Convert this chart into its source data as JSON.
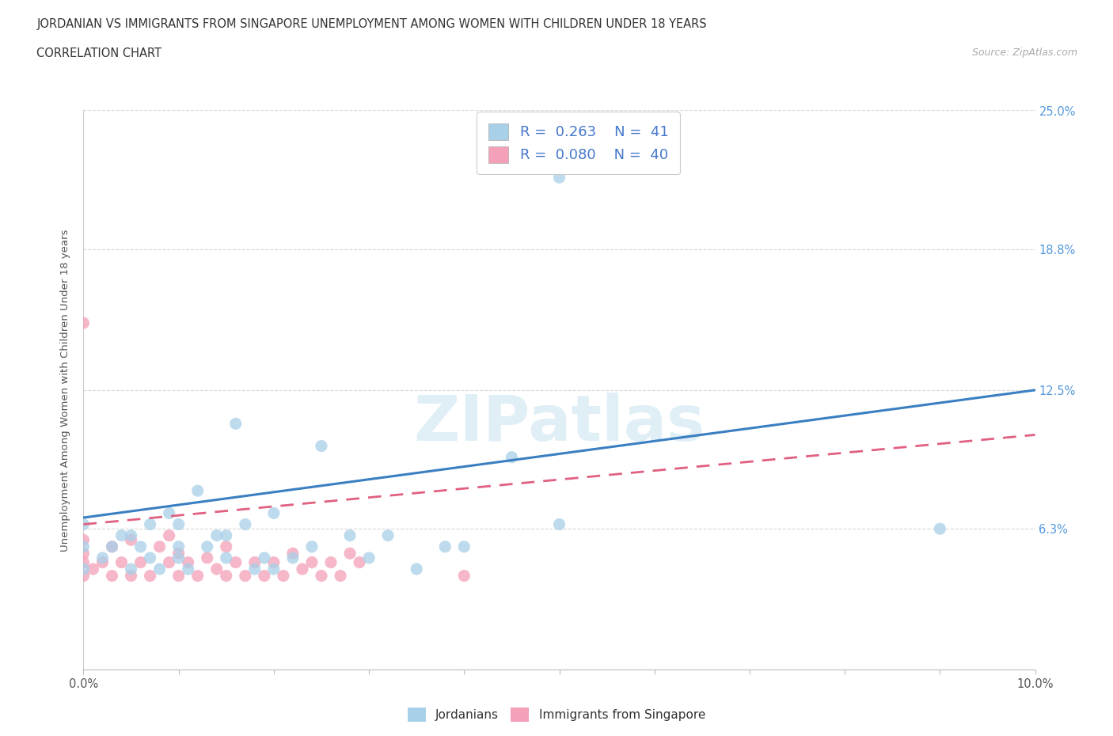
{
  "title_line1": "JORDANIAN VS IMMIGRANTS FROM SINGAPORE UNEMPLOYMENT AMONG WOMEN WITH CHILDREN UNDER 18 YEARS",
  "title_line2": "CORRELATION CHART",
  "source_text": "Source: ZipAtlas.com",
  "ylabel": "Unemployment Among Women with Children Under 18 years",
  "xlim": [
    0.0,
    0.1
  ],
  "ylim": [
    0.0,
    0.25
  ],
  "ytick_vals": [
    0.063,
    0.125,
    0.188,
    0.25
  ],
  "ytick_labels": [
    "6.3%",
    "12.5%",
    "18.8%",
    "25.0%"
  ],
  "jordanian_color": "#a8d0e8",
  "singapore_color": "#f4a0b8",
  "trend_jordanian_color": "#3a7fc1",
  "trend_singapore_color": "#e06080",
  "background_color": "#ffffff",
  "watermark_text": "ZIPatlas",
  "legend_R_jordanian": "0.263",
  "legend_N_jordanian": "41",
  "legend_R_singapore": "0.080",
  "legend_N_singapore": "40",
  "jordanian_x": [
    0.0,
    0.0,
    0.0,
    0.002,
    0.003,
    0.004,
    0.005,
    0.005,
    0.006,
    0.007,
    0.007,
    0.008,
    0.009,
    0.01,
    0.01,
    0.01,
    0.011,
    0.012,
    0.013,
    0.014,
    0.015,
    0.015,
    0.016,
    0.017,
    0.018,
    0.019,
    0.02,
    0.02,
    0.022,
    0.024,
    0.025,
    0.028,
    0.03,
    0.032,
    0.035,
    0.038,
    0.04,
    0.045,
    0.05,
    0.09,
    0.05
  ],
  "jordanian_y": [
    0.045,
    0.055,
    0.065,
    0.05,
    0.055,
    0.06,
    0.045,
    0.06,
    0.055,
    0.05,
    0.065,
    0.045,
    0.07,
    0.05,
    0.055,
    0.065,
    0.045,
    0.08,
    0.055,
    0.06,
    0.05,
    0.06,
    0.11,
    0.065,
    0.045,
    0.05,
    0.045,
    0.07,
    0.05,
    0.055,
    0.1,
    0.06,
    0.05,
    0.06,
    0.045,
    0.055,
    0.055,
    0.095,
    0.065,
    0.063,
    0.22
  ],
  "singapore_x": [
    0.0,
    0.0,
    0.0,
    0.0,
    0.001,
    0.002,
    0.003,
    0.003,
    0.004,
    0.005,
    0.005,
    0.006,
    0.007,
    0.008,
    0.009,
    0.009,
    0.01,
    0.01,
    0.011,
    0.012,
    0.013,
    0.014,
    0.015,
    0.015,
    0.016,
    0.017,
    0.018,
    0.019,
    0.02,
    0.021,
    0.022,
    0.023,
    0.024,
    0.025,
    0.026,
    0.027,
    0.028,
    0.029,
    0.04,
    0.0
  ],
  "singapore_y": [
    0.042,
    0.048,
    0.052,
    0.058,
    0.045,
    0.048,
    0.042,
    0.055,
    0.048,
    0.042,
    0.058,
    0.048,
    0.042,
    0.055,
    0.048,
    0.06,
    0.042,
    0.052,
    0.048,
    0.042,
    0.05,
    0.045,
    0.042,
    0.055,
    0.048,
    0.042,
    0.048,
    0.042,
    0.048,
    0.042,
    0.052,
    0.045,
    0.048,
    0.042,
    0.048,
    0.042,
    0.052,
    0.048,
    0.042,
    0.155
  ]
}
